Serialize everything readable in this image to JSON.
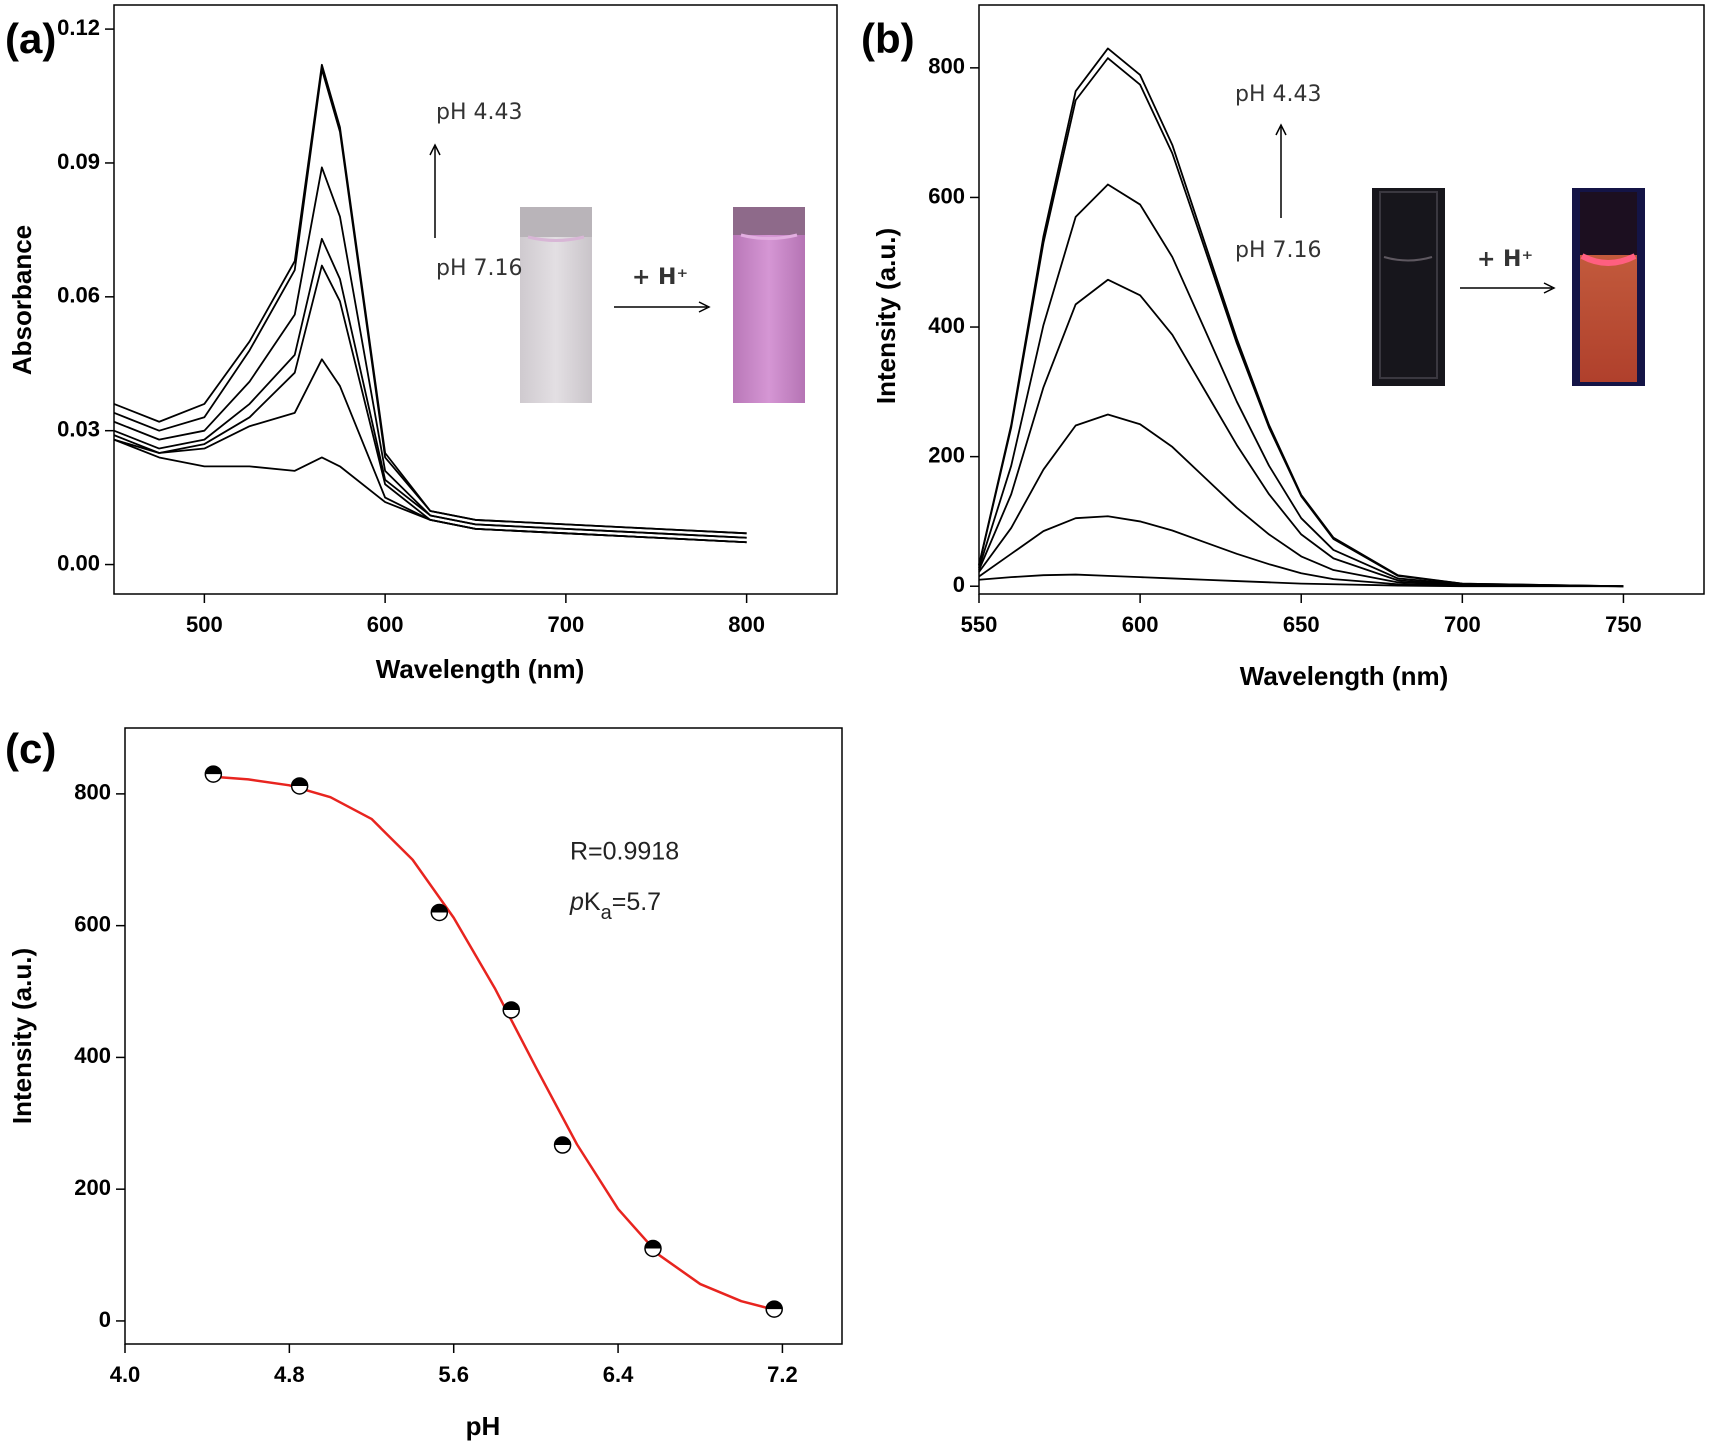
{
  "chart_data": [
    {
      "type": "line",
      "panel_label": "(a)",
      "xlabel": "Wavelength (nm)",
      "ylabel": "Absorbance",
      "x": [
        450,
        475,
        500,
        525,
        550,
        565,
        575,
        600,
        625,
        650,
        700,
        750,
        800
      ],
      "series": [
        {
          "color": "#000000",
          "values": [
            0.036,
            0.032,
            0.036,
            0.05,
            0.068,
            0.112,
            0.098,
            0.025,
            0.012,
            0.01,
            0.009,
            0.008,
            0.007
          ]
        },
        {
          "color": "#000000",
          "values": [
            0.034,
            0.03,
            0.033,
            0.048,
            0.066,
            0.111,
            0.097,
            0.024,
            0.012,
            0.01,
            0.009,
            0.008,
            0.007
          ]
        },
        {
          "color": "#000000",
          "values": [
            0.032,
            0.028,
            0.03,
            0.041,
            0.056,
            0.089,
            0.078,
            0.021,
            0.011,
            0.009,
            0.008,
            0.007,
            0.006
          ]
        },
        {
          "color": "#000000",
          "values": [
            0.03,
            0.026,
            0.028,
            0.036,
            0.047,
            0.073,
            0.064,
            0.019,
            0.011,
            0.009,
            0.008,
            0.007,
            0.006
          ]
        },
        {
          "color": "#000000",
          "values": [
            0.029,
            0.025,
            0.027,
            0.033,
            0.043,
            0.067,
            0.059,
            0.018,
            0.01,
            0.008,
            0.007,
            0.006,
            0.005
          ]
        },
        {
          "color": "#000000",
          "values": [
            0.028,
            0.025,
            0.026,
            0.031,
            0.034,
            0.046,
            0.04,
            0.015,
            0.01,
            0.008,
            0.007,
            0.006,
            0.005
          ]
        },
        {
          "color": "#000000",
          "values": [
            0.028,
            0.024,
            0.022,
            0.022,
            0.021,
            0.024,
            0.022,
            0.014,
            0.01,
            0.008,
            0.007,
            0.006,
            0.005
          ]
        }
      ],
      "xlim": [
        450,
        850
      ],
      "xticks": [
        500,
        600,
        700,
        800
      ],
      "ylim": [
        -0.0066,
        0.1254
      ],
      "yticks": [
        {
          "value": 0,
          "label": "0.00"
        },
        {
          "value": 0.03,
          "label": "0.03"
        },
        {
          "value": 0.06,
          "label": "0.06"
        },
        {
          "value": 0.09,
          "label": "0.09"
        },
        {
          "value": 0.12,
          "label": "0.12"
        }
      ],
      "annotations": [
        "pH 4.43",
        "pH 7.16",
        "+ H⁺"
      ]
    },
    {
      "type": "line",
      "panel_label": "(b)",
      "xlabel": "Wavelength (nm)",
      "ylabel": "Intensity (a.u.)",
      "x": [
        550,
        560,
        570,
        580,
        590,
        600,
        610,
        620,
        630,
        640,
        650,
        660,
        680,
        700,
        750
      ],
      "series": [
        {
          "color": "#000000",
          "values": [
            33,
            249,
            540,
            764,
            830,
            789,
            681,
            531,
            382,
            249,
            141,
            75,
            17,
            4,
            0
          ]
        },
        {
          "color": "#000000",
          "values": [
            32,
            245,
            530,
            750,
            815,
            774,
            668,
            522,
            375,
            245,
            139,
            73,
            16,
            4,
            0
          ]
        },
        {
          "color": "#000000",
          "values": [
            28,
            186,
            403,
            570,
            620,
            589,
            508,
            397,
            285,
            186,
            105,
            56,
            12,
            3,
            0
          ]
        },
        {
          "color": "#000000",
          "values": [
            25,
            142,
            307,
            435,
            473,
            449,
            388,
            303,
            218,
            142,
            80,
            43,
            9,
            2,
            0
          ]
        },
        {
          "color": "#000000",
          "values": [
            22,
            90,
            180,
            248,
            265,
            250,
            215,
            168,
            121,
            80,
            46,
            25,
            6,
            2,
            0
          ]
        },
        {
          "color": "#000000",
          "values": [
            15,
            50,
            85,
            105,
            108,
            100,
            86,
            68,
            50,
            34,
            20,
            11,
            3,
            1,
            0
          ]
        },
        {
          "color": "#000000",
          "values": [
            10,
            14,
            17,
            18,
            16,
            14,
            12,
            10,
            8,
            6,
            4,
            3,
            1,
            0,
            0
          ]
        }
      ],
      "xlim": [
        550,
        775
      ],
      "xticks": [
        550,
        600,
        650,
        700,
        750
      ],
      "ylim": [
        -12,
        897
      ],
      "yticks": [
        0,
        200,
        400,
        600,
        800
      ],
      "annotations": [
        "pH 4.43",
        "pH 7.16",
        "+ H⁺"
      ]
    },
    {
      "type": "scatter",
      "panel_label": "(c)",
      "xlabel": "pH",
      "ylabel": "Intensity (a.u.)",
      "x": [
        4.43,
        4.85,
        5.53,
        5.88,
        6.13,
        6.57,
        7.16
      ],
      "values": [
        830,
        812,
        620,
        472,
        267,
        110,
        18
      ],
      "marker_color": "#000000",
      "fit": {
        "color": "#e8241f",
        "x": [
          4.43,
          4.6,
          4.8,
          5.0,
          5.2,
          5.4,
          5.6,
          5.8,
          6.0,
          6.2,
          6.4,
          6.6,
          6.8,
          7.0,
          7.16
        ],
        "values": [
          826,
          822,
          813,
          795,
          762,
          700,
          612,
          505,
          385,
          268,
          170,
          100,
          56,
          30,
          17
        ]
      },
      "xlim": [
        4.0,
        7.49
      ],
      "xticks": [
        {
          "value": 4.0,
          "label": "4.0"
        },
        4.8,
        5.6,
        6.4,
        7.2
      ],
      "ylim": [
        -35,
        900
      ],
      "yticks": [
        0,
        200,
        400,
        600,
        800
      ],
      "annotations": [
        "R=0.9918",
        [
          "p",
          "K",
          "a",
          "=5.7"
        ]
      ]
    }
  ]
}
